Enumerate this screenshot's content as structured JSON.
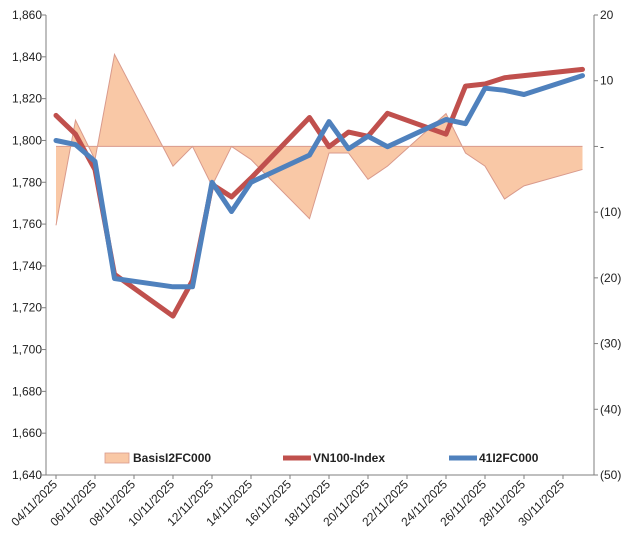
{
  "chart_data": {
    "type": "line",
    "title": "",
    "x": [
      "04/11/2025",
      "05/11/2025",
      "06/11/2025",
      "07/11/2025",
      "10/11/2025",
      "11/11/2025",
      "12/11/2025",
      "13/11/2025",
      "14/11/2025",
      "17/11/2025",
      "18/11/2025",
      "19/11/2025",
      "20/11/2025",
      "21/11/2025",
      "24/11/2025",
      "25/11/2025",
      "26/11/2025",
      "27/11/2025",
      "28/11/2025",
      "01/12/2025"
    ],
    "x_tick_labels": [
      "04/11/2025",
      "06/11/2025",
      "08/11/2025",
      "10/11/2025",
      "12/11/2025",
      "14/11/2025",
      "16/11/2025",
      "18/11/2025",
      "20/11/2025",
      "22/11/2025",
      "24/11/2025",
      "26/11/2025",
      "28/11/2025",
      "30/11/2025"
    ],
    "x_date_offsets": [
      0,
      1,
      2,
      3,
      6,
      7,
      8,
      9,
      10,
      13,
      14,
      15,
      16,
      17,
      20,
      21,
      22,
      23,
      24,
      27
    ],
    "x_tick_offsets": [
      0,
      2,
      4,
      6,
      8,
      10,
      12,
      14,
      16,
      18,
      20,
      22,
      24,
      26
    ],
    "y_left": {
      "min": 1640,
      "max": 1860,
      "step": 20,
      "tick_labels": [
        "1,640",
        "1,660",
        "1,680",
        "1,700",
        "1,720",
        "1,740",
        "1,760",
        "1,780",
        "1,800",
        "1,820",
        "1,840",
        "1,860"
      ]
    },
    "y_right": {
      "min": -50,
      "max": 20,
      "step": 10,
      "tick_labels": [
        "(50)",
        "(40)",
        "(30)",
        "(20)",
        "(10)",
        "-",
        "10",
        "20"
      ]
    },
    "series": [
      {
        "name": "BasisI2FC000",
        "type": "area",
        "axis": "right",
        "color": "#f9c8a6",
        "line_color": "#d99a8c",
        "values": [
          -12,
          4,
          -2,
          14,
          -3,
          0,
          -6,
          0,
          -2,
          -11,
          -1,
          -1,
          -5,
          -3,
          5,
          -1,
          -3,
          -8,
          -6,
          -3.5
        ]
      },
      {
        "name": "VN100-Index",
        "type": "line",
        "axis": "left",
        "color": "#c0504d",
        "values": [
          1812,
          1803,
          1786,
          1736,
          1716,
          1733,
          1779,
          1773,
          1782,
          1811,
          1797,
          1804,
          1802,
          1813,
          1803,
          1826,
          1827,
          1830,
          1831,
          1834
        ]
      },
      {
        "name": "41I2FC000",
        "type": "line",
        "axis": "left",
        "color": "#4f81bd",
        "values": [
          1800,
          1798,
          1790,
          1734,
          1730,
          1730,
          1780,
          1766,
          1780,
          1793,
          1809,
          1796,
          1802,
          1797,
          1810,
          1808,
          1825,
          1824,
          1822,
          1831
        ]
      }
    ],
    "legend_position": "bottom-inside",
    "grid": false
  }
}
